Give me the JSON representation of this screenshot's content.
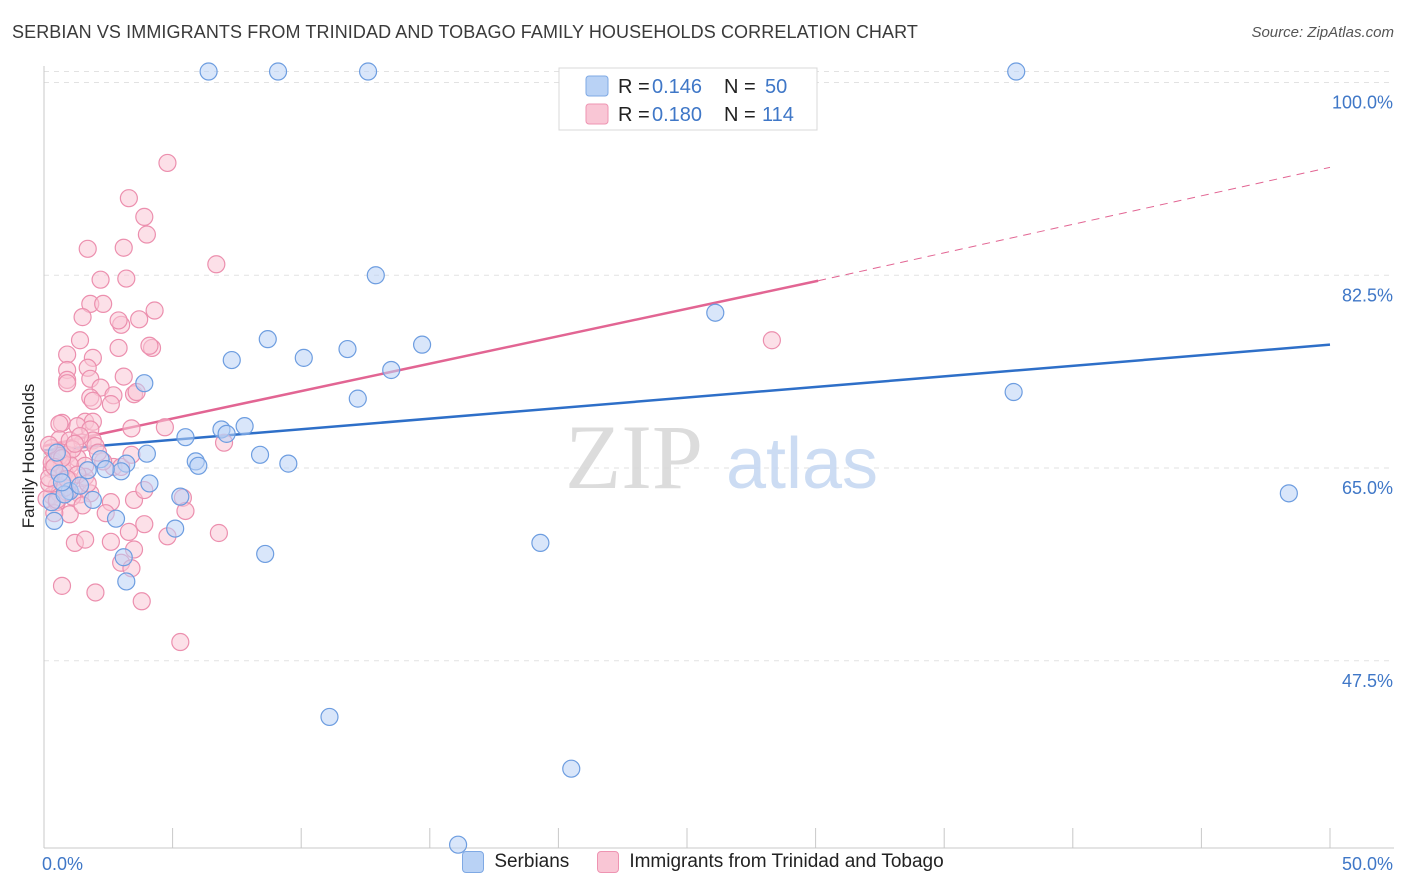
{
  "title": "SERBIAN VS IMMIGRANTS FROM TRINIDAD AND TOBAGO FAMILY HOUSEHOLDS CORRELATION CHART",
  "source": "Source: ZipAtlas.com",
  "watermark": {
    "zip": "ZIP",
    "atlas": "atlas"
  },
  "colors": {
    "blue_fill": "#b9d2f5",
    "blue_stroke": "#6d9de0",
    "blue_line": "#2e6fc8",
    "pink_fill": "#f9c6d5",
    "pink_stroke": "#ec8fae",
    "pink_line": "#e26593",
    "tick_label": "#3f77c7"
  },
  "legend": {
    "r_label": "R =",
    "n_label": "N =",
    "series": [
      {
        "r": "0.146",
        "n": "50"
      },
      {
        "r": "0.180",
        "n": "114"
      }
    ]
  },
  "chart_data": {
    "type": "scatter",
    "title": "SERBIAN VS IMMIGRANTS FROM TRINIDAD AND TOBAGO FAMILY HOUSEHOLDS CORRELATION CHART",
    "xlabel": "",
    "ylabel": "Family Households",
    "xlim": [
      0,
      50
    ],
    "ylim": [
      30.5,
      101.5
    ],
    "x_tick_labels": [
      "0.0%",
      "50.0%"
    ],
    "y_ticks": [
      100,
      82.5,
      65,
      47.5
    ],
    "y_tick_labels": [
      "100.0%",
      "82.5%",
      "65.0%",
      "47.5%"
    ],
    "grid": true,
    "legend_position": "top-center",
    "series": [
      {
        "name": "Serbians",
        "color": "blue",
        "points": [
          [
            6.4,
            101
          ],
          [
            9.1,
            101
          ],
          [
            12.6,
            101
          ],
          [
            37.8,
            101
          ],
          [
            12.9,
            82.5
          ],
          [
            26.1,
            79.1
          ],
          [
            8.7,
            76.7
          ],
          [
            11.8,
            75.8
          ],
          [
            14.7,
            76.2
          ],
          [
            10.1,
            75.0
          ],
          [
            7.3,
            74.8
          ],
          [
            13.5,
            73.9
          ],
          [
            3.9,
            72.7
          ],
          [
            12.2,
            71.3
          ],
          [
            37.7,
            71.9
          ],
          [
            6.9,
            68.5
          ],
          [
            7.1,
            68.1
          ],
          [
            5.5,
            67.8
          ],
          [
            7.8,
            68.8
          ],
          [
            4.0,
            66.3
          ],
          [
            8.4,
            66.2
          ],
          [
            5.9,
            65.6
          ],
          [
            6.0,
            65.2
          ],
          [
            9.5,
            65.4
          ],
          [
            2.2,
            65.8
          ],
          [
            3.2,
            65.4
          ],
          [
            3.0,
            64.7
          ],
          [
            1.7,
            64.8
          ],
          [
            0.6,
            64.5
          ],
          [
            4.1,
            63.6
          ],
          [
            5.3,
            62.4
          ],
          [
            1.0,
            62.9
          ],
          [
            1.4,
            63.4
          ],
          [
            0.3,
            61.9
          ],
          [
            0.8,
            62.6
          ],
          [
            2.8,
            60.4
          ],
          [
            0.4,
            60.2
          ],
          [
            5.1,
            59.5
          ],
          [
            19.3,
            58.2
          ],
          [
            48.4,
            62.7
          ],
          [
            3.1,
            56.9
          ],
          [
            8.6,
            57.2
          ],
          [
            3.2,
            54.7
          ],
          [
            11.1,
            42.4
          ],
          [
            20.5,
            37.7
          ],
          [
            16.1,
            30.8
          ],
          [
            0.5,
            66.4
          ],
          [
            2.4,
            64.9
          ],
          [
            1.9,
            62.1
          ],
          [
            0.7,
            63.7
          ]
        ]
      },
      {
        "name": "Immigrants from Trinidad and Tobago",
        "color": "pink",
        "points": [
          [
            4.8,
            92.7
          ],
          [
            3.3,
            89.5
          ],
          [
            3.9,
            87.8
          ],
          [
            4.0,
            86.2
          ],
          [
            1.7,
            84.9
          ],
          [
            3.1,
            85.0
          ],
          [
            6.7,
            83.5
          ],
          [
            2.2,
            82.1
          ],
          [
            3.2,
            82.2
          ],
          [
            1.8,
            79.9
          ],
          [
            2.3,
            79.9
          ],
          [
            4.3,
            79.3
          ],
          [
            1.5,
            78.7
          ],
          [
            3.0,
            78.0
          ],
          [
            2.9,
            78.4
          ],
          [
            3.7,
            78.5
          ],
          [
            28.3,
            76.6
          ],
          [
            1.4,
            76.6
          ],
          [
            2.9,
            75.9
          ],
          [
            4.2,
            75.9
          ],
          [
            4.1,
            76.1
          ],
          [
            0.9,
            75.3
          ],
          [
            1.9,
            75.0
          ],
          [
            1.7,
            74.1
          ],
          [
            0.9,
            73.9
          ],
          [
            3.1,
            73.3
          ],
          [
            0.9,
            73.0
          ],
          [
            1.8,
            73.1
          ],
          [
            0.9,
            72.7
          ],
          [
            2.2,
            72.3
          ],
          [
            3.5,
            71.7
          ],
          [
            3.6,
            71.9
          ],
          [
            1.8,
            71.4
          ],
          [
            2.7,
            71.6
          ],
          [
            1.9,
            71.1
          ],
          [
            2.6,
            70.8
          ],
          [
            1.6,
            69.2
          ],
          [
            1.9,
            69.2
          ],
          [
            0.7,
            69.1
          ],
          [
            0.6,
            69.0
          ],
          [
            1.3,
            68.8
          ],
          [
            1.8,
            68.5
          ],
          [
            4.7,
            68.7
          ],
          [
            3.4,
            68.6
          ],
          [
            0.6,
            67.6
          ],
          [
            1.0,
            67.5
          ],
          [
            1.5,
            67.3
          ],
          [
            1.9,
            67.5
          ],
          [
            2.0,
            67.0
          ],
          [
            1.4,
            67.9
          ],
          [
            7.0,
            67.3
          ],
          [
            0.3,
            66.8
          ],
          [
            0.7,
            66.4
          ],
          [
            0.9,
            66.2
          ],
          [
            1.3,
            65.9
          ],
          [
            0.4,
            65.6
          ],
          [
            0.7,
            65.2
          ],
          [
            1.6,
            65.2
          ],
          [
            2.7,
            65.1
          ],
          [
            3.0,
            65.1
          ],
          [
            0.3,
            64.9
          ],
          [
            0.8,
            64.6
          ],
          [
            1.6,
            64.2
          ],
          [
            1.0,
            63.9
          ],
          [
            0.5,
            63.4
          ],
          [
            0.3,
            62.5
          ],
          [
            0.1,
            62.2
          ],
          [
            0.6,
            62.7
          ],
          [
            1.4,
            62.6
          ],
          [
            1.8,
            62.7
          ],
          [
            2.6,
            61.9
          ],
          [
            3.5,
            62.1
          ],
          [
            3.9,
            63.0
          ],
          [
            5.4,
            62.3
          ],
          [
            5.5,
            61.1
          ],
          [
            1.0,
            60.8
          ],
          [
            3.9,
            59.9
          ],
          [
            4.8,
            58.8
          ],
          [
            6.8,
            59.1
          ],
          [
            1.2,
            58.2
          ],
          [
            1.6,
            58.5
          ],
          [
            2.6,
            58.3
          ],
          [
            3.3,
            59.2
          ],
          [
            3.5,
            57.6
          ],
          [
            3.0,
            56.4
          ],
          [
            3.4,
            55.9
          ],
          [
            0.7,
            54.3
          ],
          [
            2.0,
            53.7
          ],
          [
            3.8,
            52.9
          ],
          [
            5.3,
            49.2
          ],
          [
            0.2,
            63.6
          ],
          [
            0.5,
            61.9
          ],
          [
            1.1,
            62.4
          ],
          [
            0.9,
            62.8
          ],
          [
            0.3,
            65.5
          ],
          [
            0.6,
            66.1
          ],
          [
            2.3,
            65.6
          ],
          [
            1.0,
            65.3
          ],
          [
            0.2,
            64.1
          ],
          [
            1.3,
            64.4
          ],
          [
            0.8,
            63.2
          ],
          [
            1.5,
            61.6
          ],
          [
            0.4,
            60.9
          ],
          [
            2.4,
            60.9
          ],
          [
            0.2,
            67.1
          ],
          [
            1.1,
            66.7
          ],
          [
            0.7,
            65.9
          ],
          [
            0.4,
            65.1
          ],
          [
            0.9,
            64.0
          ],
          [
            1.7,
            63.6
          ],
          [
            2.1,
            66.4
          ],
          [
            3.4,
            66.2
          ],
          [
            1.2,
            67.2
          ],
          [
            0.5,
            62.1
          ]
        ]
      }
    ],
    "trend_lines": [
      {
        "series": "Serbians",
        "x": [
          0,
          50
        ],
        "y": [
          66.6,
          76.2
        ],
        "style": "solid"
      },
      {
        "series": "Immigrants from Trinidad and Tobago",
        "x": [
          0,
          30.1
        ],
        "y": [
          67.0,
          82.0
        ],
        "style": "solid"
      },
      {
        "series": "Immigrants from Trinidad and Tobago",
        "x": [
          30.1,
          50
        ],
        "y": [
          82.0,
          92.3
        ],
        "style": "dashed"
      }
    ]
  }
}
